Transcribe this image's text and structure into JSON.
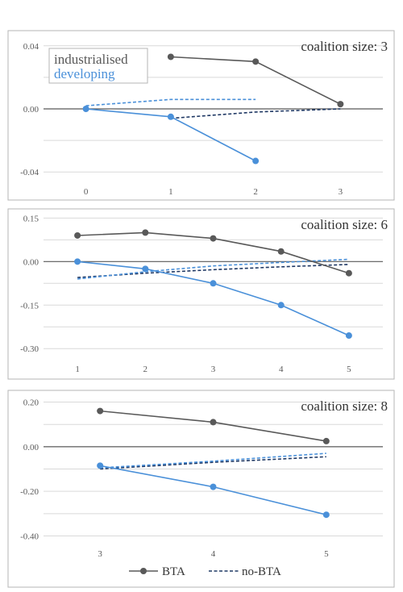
{
  "colors": {
    "industrialised_bta": "#595959",
    "industrialised_nobta": "#1f3864",
    "developing_bta": "#4a90d9",
    "developing_nobta": "#4a90d9"
  },
  "group_legend": {
    "industrialised": "industrialised",
    "developing": "developing"
  },
  "line_legend": {
    "bta": "BTA",
    "nobta": "no-BTA"
  },
  "chart_data": [
    {
      "type": "line",
      "title": "coalition size: 3",
      "x": [
        0,
        1,
        2,
        3
      ],
      "ylim": [
        -0.045,
        0.045
      ],
      "yticks": [
        0.04,
        0.0,
        -0.04
      ],
      "ytick_labels": [
        "0.04",
        "0.00",
        "-0.04"
      ],
      "grid": true,
      "series": [
        {
          "group": "industrialised",
          "kind": "bta",
          "x": [
            1,
            2,
            3
          ],
          "values": [
            0.033,
            0.03,
            0.003
          ]
        },
        {
          "group": "industrialised",
          "kind": "nobta",
          "x": [
            1,
            2,
            3
          ],
          "values": [
            -0.006,
            -0.002,
            0.0
          ]
        },
        {
          "group": "developing",
          "kind": "bta",
          "x": [
            0,
            1,
            2
          ],
          "values": [
            0.0,
            -0.005,
            -0.033
          ]
        },
        {
          "group": "developing",
          "kind": "nobta",
          "x": [
            0,
            1,
            2
          ],
          "values": [
            0.002,
            0.006,
            0.006
          ]
        }
      ]
    },
    {
      "type": "line",
      "title": "coalition size: 6",
      "x": [
        1,
        2,
        3,
        4,
        5
      ],
      "ylim": [
        -0.33,
        0.165
      ],
      "yticks": [
        0.15,
        0.0,
        -0.15,
        -0.3
      ],
      "ytick_labels": [
        "0.15",
        "0.00",
        "-0.15",
        "-0.30"
      ],
      "grid": true,
      "series": [
        {
          "group": "industrialised",
          "kind": "bta",
          "x": [
            1,
            2,
            3,
            4,
            5
          ],
          "values": [
            0.09,
            0.1,
            0.08,
            0.035,
            -0.04
          ]
        },
        {
          "group": "industrialised",
          "kind": "nobta",
          "x": [
            1,
            2,
            3,
            4,
            5
          ],
          "values": [
            -0.055,
            -0.04,
            -0.028,
            -0.018,
            -0.01
          ]
        },
        {
          "group": "developing",
          "kind": "bta",
          "x": [
            1,
            2,
            3,
            4,
            5
          ],
          "values": [
            0.0,
            -0.025,
            -0.075,
            -0.15,
            -0.255
          ]
        },
        {
          "group": "developing",
          "kind": "nobta",
          "x": [
            1,
            2,
            3,
            4,
            5
          ],
          "values": [
            -0.06,
            -0.035,
            -0.015,
            -0.003,
            0.008
          ]
        }
      ]
    },
    {
      "type": "line",
      "title": "coalition size: 8",
      "x": [
        3,
        4,
        5
      ],
      "ylim": [
        -0.42,
        0.22
      ],
      "yticks": [
        0.2,
        0.0,
        -0.2,
        -0.4
      ],
      "ytick_labels": [
        "0.20",
        "0.00",
        "-0.20",
        "-0.40"
      ],
      "grid": true,
      "series": [
        {
          "group": "industrialised",
          "kind": "bta",
          "x": [
            3,
            4,
            5
          ],
          "values": [
            0.16,
            0.11,
            0.025
          ]
        },
        {
          "group": "industrialised",
          "kind": "nobta",
          "x": [
            3,
            4,
            5
          ],
          "values": [
            -0.1,
            -0.07,
            -0.045
          ]
        },
        {
          "group": "developing",
          "kind": "bta",
          "x": [
            3,
            4,
            5
          ],
          "values": [
            -0.085,
            -0.18,
            -0.305
          ]
        },
        {
          "group": "developing",
          "kind": "nobta",
          "x": [
            3,
            4,
            5
          ],
          "values": [
            -0.095,
            -0.065,
            -0.03
          ]
        }
      ]
    }
  ]
}
